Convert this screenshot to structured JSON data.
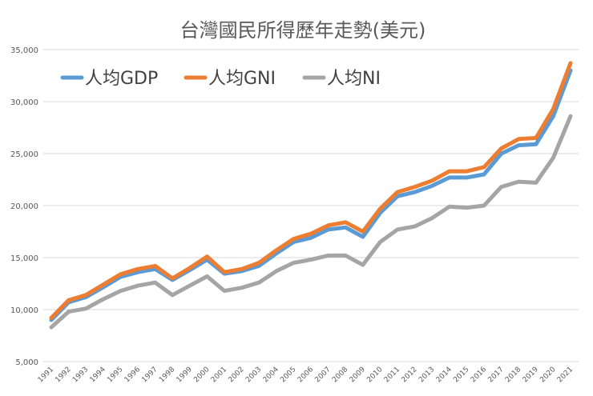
{
  "chart_data": {
    "type": "line",
    "title": "台灣國民所得歷年走勢(美元)",
    "xlabel": "",
    "ylabel": "",
    "ylim": [
      5000,
      35000
    ],
    "yticks": [
      5000,
      10000,
      15000,
      20000,
      25000,
      30000,
      35000
    ],
    "ytick_labels": [
      "5,000",
      "10,000",
      "15,000",
      "20,000",
      "25,000",
      "30,000",
      "35,000"
    ],
    "grid": true,
    "legend_position": "top-left",
    "categories": [
      "1991",
      "1992",
      "1993",
      "1994",
      "1995",
      "1996",
      "1997",
      "1998",
      "1999",
      "2000",
      "2001",
      "2002",
      "2003",
      "2004",
      "2005",
      "2006",
      "2007",
      "2008",
      "2009",
      "2010",
      "2011",
      "2012",
      "2013",
      "2014",
      "2015",
      "2016",
      "2017",
      "2018",
      "2019",
      "2020",
      "2021"
    ],
    "series": [
      {
        "name": "人均GDP",
        "color": "#5b9bd5",
        "values": [
          9000,
          10700,
          11200,
          12150,
          13150,
          13600,
          13900,
          12850,
          13800,
          14800,
          13450,
          13700,
          14200,
          15400,
          16500,
          16900,
          17700,
          17900,
          17000,
          19300,
          20900,
          21300,
          21900,
          22700,
          22700,
          23000,
          25000,
          25800,
          25900,
          28600,
          33000
        ]
      },
      {
        "name": "人均GNI",
        "color": "#ed7d31",
        "values": [
          9200,
          10900,
          11400,
          12400,
          13400,
          13900,
          14200,
          13000,
          14000,
          15100,
          13600,
          13900,
          14500,
          15700,
          16800,
          17300,
          18100,
          18400,
          17500,
          19700,
          21300,
          21800,
          22400,
          23300,
          23300,
          23700,
          25500,
          26400,
          26500,
          29300,
          33700
        ]
      },
      {
        "name": "人均NI",
        "color": "#a5a5a5",
        "values": [
          8300,
          9800,
          10100,
          11000,
          11800,
          12300,
          12600,
          11400,
          12300,
          13200,
          11800,
          12100,
          12600,
          13700,
          14500,
          14800,
          15200,
          15200,
          14300,
          16500,
          17700,
          18000,
          18800,
          19900,
          19800,
          20000,
          21800,
          22300,
          22200,
          24600,
          28600
        ]
      }
    ]
  }
}
